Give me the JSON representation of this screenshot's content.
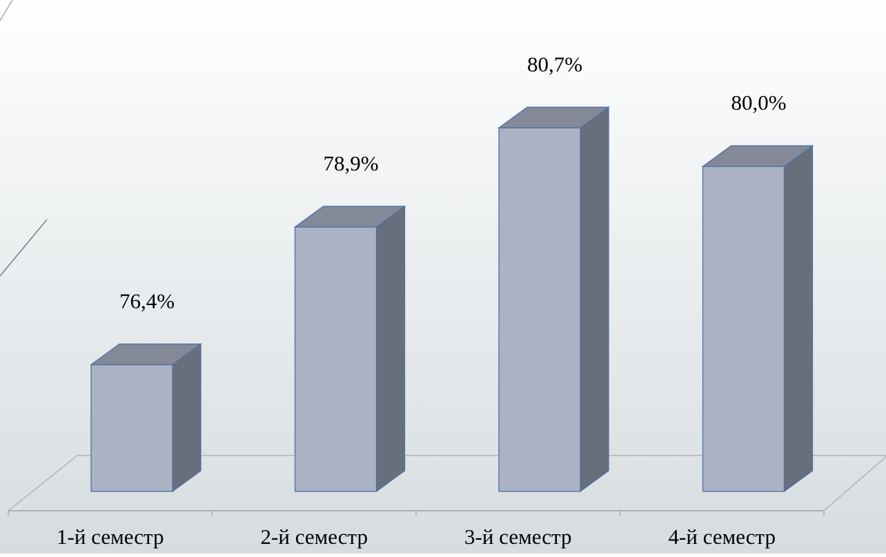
{
  "chart_data": {
    "type": "bar",
    "style": "3d-column",
    "categories": [
      "1-й семестр",
      "2-й семестр",
      "3-й семестр",
      "4-й семестр"
    ],
    "values": [
      76.4,
      78.9,
      80.7,
      80.0
    ],
    "data_labels": [
      "76,4%",
      "78,9%",
      "80,7%",
      "80,0%"
    ],
    "title": "",
    "xlabel": "",
    "ylabel": "",
    "ylim": [
      74.1,
      81.3
    ],
    "y_axis_visible": false,
    "grid": false,
    "legend": "none",
    "colors": {
      "bar_front": "#aab2c4",
      "bar_top": "#838996",
      "bar_side": "#686f7c",
      "bar_stroke": "#4f6fa6",
      "floor_line": "#a9a9a9",
      "axis_line": "#a0a0a0",
      "decor_line": "#7f8a8f"
    }
  }
}
